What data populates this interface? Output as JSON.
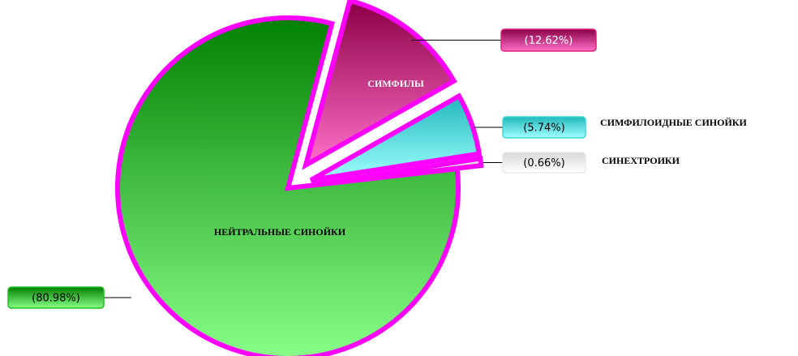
{
  "chart_data": {
    "type": "pie",
    "categories": [
      "СИМФИЛЫ",
      "СИМФИЛОИДНЫЕ СИНОЙКИ",
      "СИНЕХТРОИКИ",
      "НЕЙТРАЛЬНЫЕ СИНОЙКИ"
    ],
    "values": [
      12.62,
      5.74,
      0.66,
      80.98
    ],
    "value_labels": [
      "(12.62%)",
      "(5.74%)",
      "(0.66%)",
      "(80.98%)"
    ],
    "colors": [
      "#e0207f",
      "#40d8dc",
      "#e8e8e8",
      "#20c020"
    ],
    "border_color": "#ff00ff"
  }
}
